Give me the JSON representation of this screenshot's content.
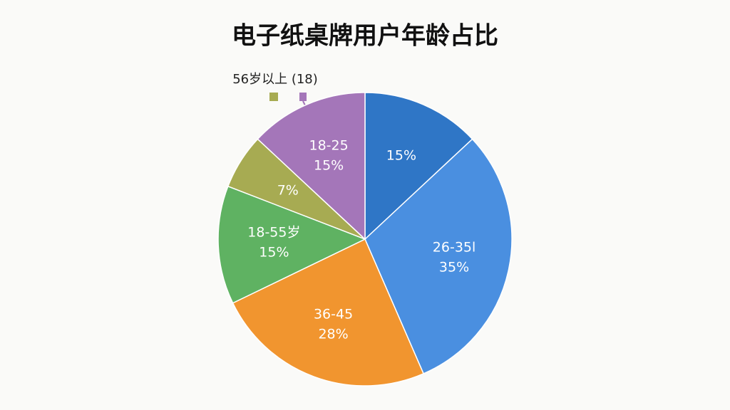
{
  "chart_data": {
    "type": "pie",
    "title": "电子纸桌牌用户年龄占比",
    "categories": [
      null,
      "26-35l",
      "36-45",
      "18-55岁",
      null,
      "18-25"
    ],
    "values": [
      15,
      35,
      28,
      15,
      7,
      15
    ],
    "value_labels": [
      "15%",
      "35%",
      "28%",
      "15%",
      "7%",
      "15%"
    ],
    "colors": [
      "#2f76c6",
      "#4a8fe0",
      "#f1952f",
      "#5fb262",
      "#a7ab52",
      "#a476b9"
    ],
    "annotation": "56岁以上 (18)"
  }
}
